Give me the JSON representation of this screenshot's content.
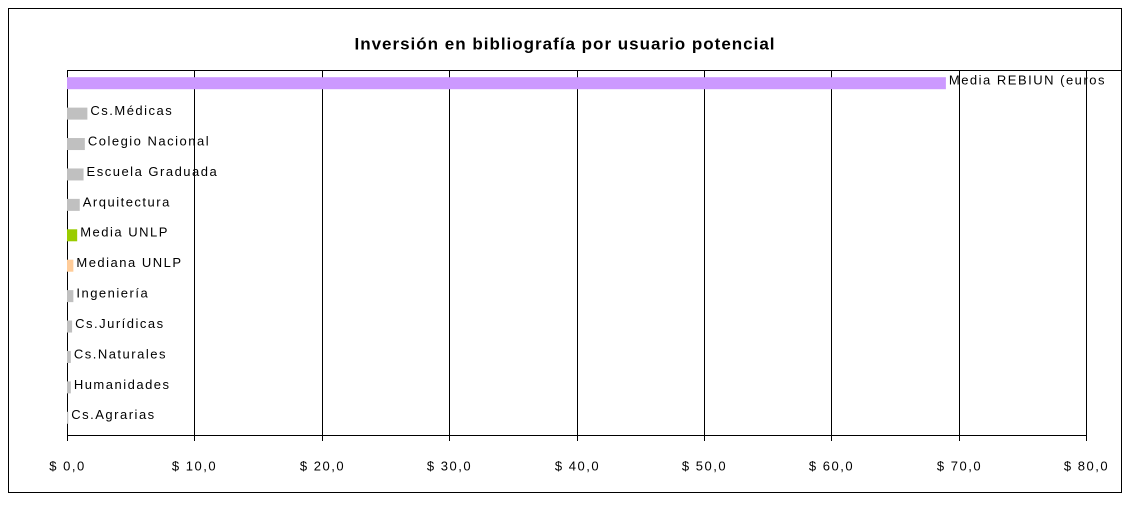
{
  "chart_data": {
    "type": "hbar",
    "title": "Inversión en bibliografía por usuario potencial",
    "categories": [
      "Media REBIUN (euros",
      "Cs.Médicas",
      "Colegio Nacional",
      "Escuela Graduada",
      "Arquitectura",
      "Media UNLP",
      "Mediana UNLP",
      "Ingeniería",
      "Cs.Jurídicas",
      "Cs.Naturales",
      "Humanidades",
      "Cs.Agrarias"
    ],
    "values": [
      69,
      1.6,
      1.4,
      1.3,
      1.0,
      0.8,
      0.5,
      0.5,
      0.4,
      0.3,
      0.3,
      0.1
    ],
    "colors": [
      "#cc99ff",
      "#c0c0c0",
      "#c0c0c0",
      "#c0c0c0",
      "#c0c0c0",
      "#99cc00",
      "#ffcc99",
      "#c0c0c0",
      "#c0c0c0",
      "#c0c0c0",
      "#c0c0c0",
      "#c0c0c0"
    ],
    "xlim": [
      0,
      80
    ],
    "xticks": [
      {
        "value": 0,
        "label": "$ 0,0"
      },
      {
        "value": 10,
        "label": "$ 10,0"
      },
      {
        "value": 20,
        "label": "$ 20,0"
      },
      {
        "value": 30,
        "label": "$ 30,0"
      },
      {
        "value": 40,
        "label": "$ 40,0"
      },
      {
        "value": 50,
        "label": "$ 50,0"
      },
      {
        "value": 60,
        "label": "$ 60,0"
      },
      {
        "value": 70,
        "label": "$ 70,0"
      },
      {
        "value": 80,
        "label": "$ 80,0"
      }
    ],
    "grid": true
  }
}
